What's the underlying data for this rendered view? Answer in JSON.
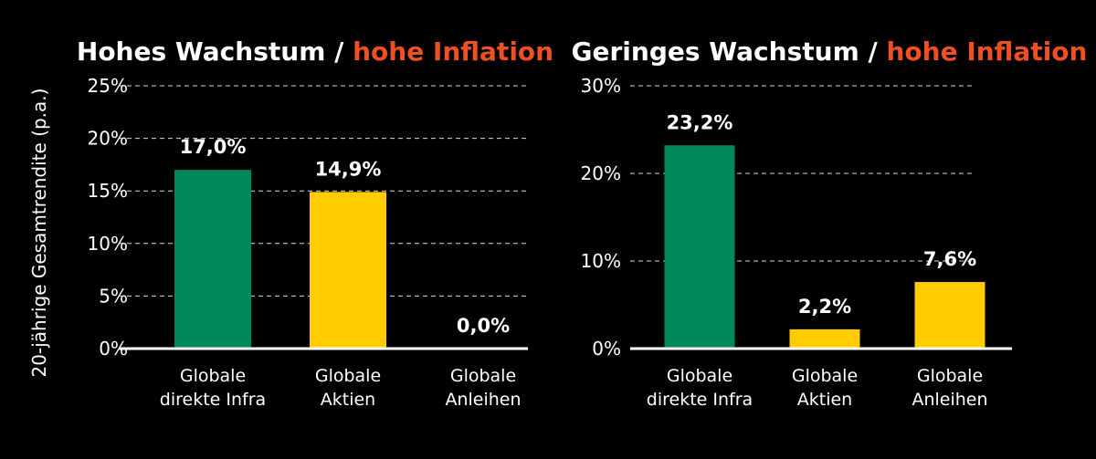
{
  "colors": {
    "background": "#000000",
    "accent": "#f04e23",
    "infra": "#00875a",
    "equity": "#ffcc00",
    "bonds": "#ffcc00",
    "text": "#ffffff"
  },
  "y_axis_label": "20-jährige Gesamtrendite (p.a.)",
  "chart_data": [
    {
      "type": "bar",
      "title_main": "Hohes Wachstum / ",
      "title_accent": "hohe Inflation",
      "categories": [
        [
          "Globale",
          "direkte Infra"
        ],
        [
          "Globale",
          "Aktien"
        ],
        [
          "Globale",
          "Anleihen"
        ]
      ],
      "values": [
        17.0,
        14.9,
        0.0
      ],
      "value_labels": [
        "17,0%",
        "14,9%",
        "0,0%"
      ],
      "bar_colors": [
        "#00875a",
        "#ffcc00",
        "#ffcc00"
      ],
      "ylim": [
        0,
        25
      ],
      "ticks": [
        0,
        5,
        10,
        15,
        20,
        25
      ],
      "tick_labels": [
        "0%",
        "5%",
        "10%",
        "15%",
        "20%",
        "25%"
      ],
      "grid": true
    },
    {
      "type": "bar",
      "title_main": "Geringes Wachstum / ",
      "title_accent": "hohe Inflation",
      "categories": [
        [
          "Globale",
          "direkte Infra"
        ],
        [
          "Globale",
          "Aktien"
        ],
        [
          "Globale",
          "Anleihen"
        ]
      ],
      "values": [
        23.2,
        2.2,
        7.6
      ],
      "value_labels": [
        "23,2%",
        "2,2%",
        "7,6%"
      ],
      "bar_colors": [
        "#00875a",
        "#ffcc00",
        "#ffcc00"
      ],
      "ylim": [
        0,
        30
      ],
      "ticks": [
        0,
        10,
        20,
        30
      ],
      "tick_labels": [
        "0%",
        "10%",
        "20%",
        "30%"
      ],
      "grid": true
    }
  ]
}
